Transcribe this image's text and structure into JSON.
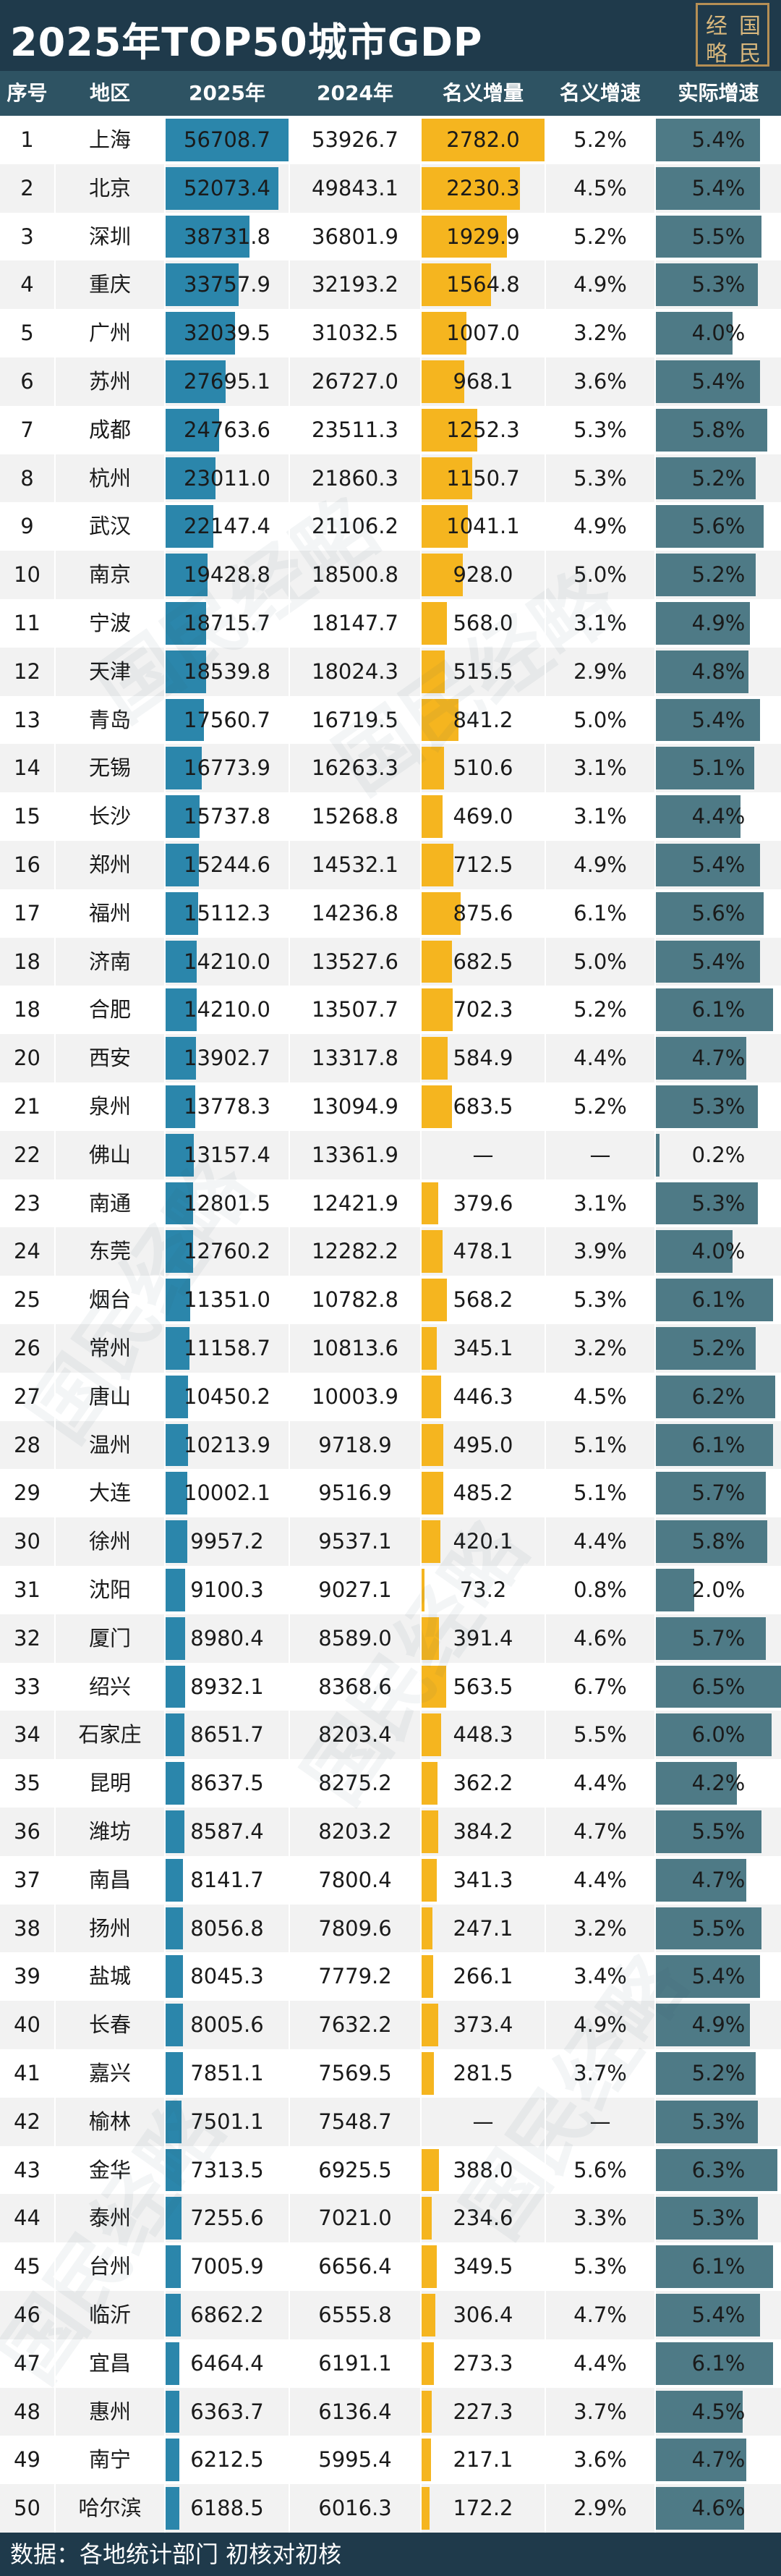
{
  "title": "2025年TOP50城市GDP",
  "logo": {
    "chars": [
      "经",
      "国",
      "略",
      "民"
    ]
  },
  "footer": {
    "text": "数据：各地统计部门 初核对初核"
  },
  "colors": {
    "title_bg": "#1f3a4b",
    "header_bg": "#2e5363",
    "bar_2025": "#2b86ab",
    "bar_increase": "#f5b51f",
    "bar_real_growth": "#4e7a86"
  },
  "chart_data": {
    "type": "table",
    "title": "2025年TOP50城市GDP",
    "columns": [
      "序号",
      "地区",
      "2025年",
      "2024年",
      "名义增量",
      "名义增速",
      "实际增速"
    ],
    "rows": [
      {
        "rank": "1",
        "city": "上海",
        "gdp2025": 56708.7,
        "gdp2024": 53926.7,
        "increase": 2782.0,
        "nominal": "5.2%",
        "real": 5.4
      },
      {
        "rank": "2",
        "city": "北京",
        "gdp2025": 52073.4,
        "gdp2024": 49843.1,
        "increase": 2230.3,
        "nominal": "4.5%",
        "real": 5.4
      },
      {
        "rank": "3",
        "city": "深圳",
        "gdp2025": 38731.8,
        "gdp2024": 36801.9,
        "increase": 1929.9,
        "nominal": "5.2%",
        "real": 5.5
      },
      {
        "rank": "4",
        "city": "重庆",
        "gdp2025": 33757.9,
        "gdp2024": 32193.2,
        "increase": 1564.8,
        "nominal": "4.9%",
        "real": 5.3
      },
      {
        "rank": "5",
        "city": "广州",
        "gdp2025": 32039.5,
        "gdp2024": 31032.5,
        "increase": 1007.0,
        "nominal": "3.2%",
        "real": 4.0
      },
      {
        "rank": "6",
        "city": "苏州",
        "gdp2025": 27695.1,
        "gdp2024": 26727.0,
        "increase": 968.1,
        "nominal": "3.6%",
        "real": 5.4
      },
      {
        "rank": "7",
        "city": "成都",
        "gdp2025": 24763.6,
        "gdp2024": 23511.3,
        "increase": 1252.3,
        "nominal": "5.3%",
        "real": 5.8
      },
      {
        "rank": "8",
        "city": "杭州",
        "gdp2025": 23011.0,
        "gdp2024": 21860.3,
        "increase": 1150.7,
        "nominal": "5.3%",
        "real": 5.2
      },
      {
        "rank": "9",
        "city": "武汉",
        "gdp2025": 22147.4,
        "gdp2024": 21106.2,
        "increase": 1041.1,
        "nominal": "4.9%",
        "real": 5.6
      },
      {
        "rank": "10",
        "city": "南京",
        "gdp2025": 19428.8,
        "gdp2024": 18500.8,
        "increase": 928.0,
        "nominal": "5.0%",
        "real": 5.2
      },
      {
        "rank": "11",
        "city": "宁波",
        "gdp2025": 18715.7,
        "gdp2024": 18147.7,
        "increase": 568.0,
        "nominal": "3.1%",
        "real": 4.9
      },
      {
        "rank": "12",
        "city": "天津",
        "gdp2025": 18539.8,
        "gdp2024": 18024.3,
        "increase": 515.5,
        "nominal": "2.9%",
        "real": 4.8
      },
      {
        "rank": "13",
        "city": "青岛",
        "gdp2025": 17560.7,
        "gdp2024": 16719.5,
        "increase": 841.2,
        "nominal": "5.0%",
        "real": 5.4
      },
      {
        "rank": "14",
        "city": "无锡",
        "gdp2025": 16773.9,
        "gdp2024": 16263.3,
        "increase": 510.6,
        "nominal": "3.1%",
        "real": 5.1
      },
      {
        "rank": "15",
        "city": "长沙",
        "gdp2025": 15737.8,
        "gdp2024": 15268.8,
        "increase": 469.0,
        "nominal": "3.1%",
        "real": 4.4
      },
      {
        "rank": "16",
        "city": "郑州",
        "gdp2025": 15244.6,
        "gdp2024": 14532.1,
        "increase": 712.5,
        "nominal": "4.9%",
        "real": 5.4
      },
      {
        "rank": "17",
        "city": "福州",
        "gdp2025": 15112.3,
        "gdp2024": 14236.8,
        "increase": 875.6,
        "nominal": "6.1%",
        "real": 5.6
      },
      {
        "rank": "18",
        "city": "济南",
        "gdp2025": 14210.0,
        "gdp2024": 13527.6,
        "increase": 682.5,
        "nominal": "5.0%",
        "real": 5.4
      },
      {
        "rank": "18",
        "city": "合肥",
        "gdp2025": 14210.0,
        "gdp2024": 13507.7,
        "increase": 702.3,
        "nominal": "5.2%",
        "real": 6.1
      },
      {
        "rank": "20",
        "city": "西安",
        "gdp2025": 13902.7,
        "gdp2024": 13317.8,
        "increase": 584.9,
        "nominal": "4.4%",
        "real": 4.7
      },
      {
        "rank": "21",
        "city": "泉州",
        "gdp2025": 13778.3,
        "gdp2024": 13094.9,
        "increase": 683.5,
        "nominal": "5.2%",
        "real": 5.3
      },
      {
        "rank": "22",
        "city": "佛山",
        "gdp2025": 13157.4,
        "gdp2024": 13361.9,
        "increase": null,
        "increase_text": "—",
        "nominal": "—",
        "real": 0.2
      },
      {
        "rank": "23",
        "city": "南通",
        "gdp2025": 12801.5,
        "gdp2024": 12421.9,
        "increase": 379.6,
        "nominal": "3.1%",
        "real": 5.3
      },
      {
        "rank": "24",
        "city": "东莞",
        "gdp2025": 12760.2,
        "gdp2024": 12282.2,
        "increase": 478.1,
        "nominal": "3.9%",
        "real": 4.0
      },
      {
        "rank": "25",
        "city": "烟台",
        "gdp2025": 11351.0,
        "gdp2024": 10782.8,
        "increase": 568.2,
        "nominal": "5.3%",
        "real": 6.1
      },
      {
        "rank": "26",
        "city": "常州",
        "gdp2025": 11158.7,
        "gdp2024": 10813.6,
        "increase": 345.1,
        "nominal": "3.2%",
        "real": 5.2
      },
      {
        "rank": "27",
        "city": "唐山",
        "gdp2025": 10450.2,
        "gdp2024": 10003.9,
        "increase": 446.3,
        "nominal": "4.5%",
        "real": 6.2
      },
      {
        "rank": "28",
        "city": "温州",
        "gdp2025": 10213.9,
        "gdp2024": 9718.9,
        "increase": 495.0,
        "nominal": "5.1%",
        "real": 6.1
      },
      {
        "rank": "29",
        "city": "大连",
        "gdp2025": 10002.1,
        "gdp2024": 9516.9,
        "increase": 485.2,
        "nominal": "5.1%",
        "real": 5.7
      },
      {
        "rank": "30",
        "city": "徐州",
        "gdp2025": 9957.2,
        "gdp2024": 9537.1,
        "increase": 420.1,
        "nominal": "4.4%",
        "real": 5.8
      },
      {
        "rank": "31",
        "city": "沈阳",
        "gdp2025": 9100.3,
        "gdp2024": 9027.1,
        "increase": 73.2,
        "nominal": "0.8%",
        "real": 2.0
      },
      {
        "rank": "32",
        "city": "厦门",
        "gdp2025": 8980.4,
        "gdp2024": 8589.0,
        "increase": 391.4,
        "nominal": "4.6%",
        "real": 5.7
      },
      {
        "rank": "33",
        "city": "绍兴",
        "gdp2025": 8932.1,
        "gdp2024": 8368.6,
        "increase": 563.5,
        "nominal": "6.7%",
        "real": 6.5
      },
      {
        "rank": "34",
        "city": "石家庄",
        "gdp2025": 8651.7,
        "gdp2024": 8203.4,
        "increase": 448.3,
        "nominal": "5.5%",
        "real": 6.0
      },
      {
        "rank": "35",
        "city": "昆明",
        "gdp2025": 8637.5,
        "gdp2024": 8275.2,
        "increase": 362.2,
        "nominal": "4.4%",
        "real": 4.2
      },
      {
        "rank": "36",
        "city": "潍坊",
        "gdp2025": 8587.4,
        "gdp2024": 8203.2,
        "increase": 384.2,
        "nominal": "4.7%",
        "real": 5.5
      },
      {
        "rank": "37",
        "city": "南昌",
        "gdp2025": 8141.7,
        "gdp2024": 7800.4,
        "increase": 341.3,
        "nominal": "4.4%",
        "real": 4.7
      },
      {
        "rank": "38",
        "city": "扬州",
        "gdp2025": 8056.8,
        "gdp2024": 7809.6,
        "increase": 247.1,
        "nominal": "3.2%",
        "real": 5.5
      },
      {
        "rank": "39",
        "city": "盐城",
        "gdp2025": 8045.3,
        "gdp2024": 7779.2,
        "increase": 266.1,
        "nominal": "3.4%",
        "real": 5.4
      },
      {
        "rank": "40",
        "city": "长春",
        "gdp2025": 8005.6,
        "gdp2024": 7632.2,
        "increase": 373.4,
        "nominal": "4.9%",
        "real": 4.9
      },
      {
        "rank": "41",
        "city": "嘉兴",
        "gdp2025": 7851.1,
        "gdp2024": 7569.5,
        "increase": 281.5,
        "nominal": "3.7%",
        "real": 5.2
      },
      {
        "rank": "42",
        "city": "榆林",
        "gdp2025": 7501.1,
        "gdp2024": 7548.7,
        "increase": null,
        "increase_text": "—",
        "nominal": "—",
        "real": 5.3
      },
      {
        "rank": "43",
        "city": "金华",
        "gdp2025": 7313.5,
        "gdp2024": 6925.5,
        "increase": 388.0,
        "nominal": "5.6%",
        "real": 6.3
      },
      {
        "rank": "44",
        "city": "泰州",
        "gdp2025": 7255.6,
        "gdp2024": 7021.0,
        "increase": 234.6,
        "nominal": "3.3%",
        "real": 5.3
      },
      {
        "rank": "45",
        "city": "台州",
        "gdp2025": 7005.9,
        "gdp2024": 6656.4,
        "increase": 349.5,
        "nominal": "5.3%",
        "real": 6.1
      },
      {
        "rank": "46",
        "city": "临沂",
        "gdp2025": 6862.2,
        "gdp2024": 6555.8,
        "increase": 306.4,
        "nominal": "4.7%",
        "real": 5.4
      },
      {
        "rank": "47",
        "city": "宜昌",
        "gdp2025": 6464.4,
        "gdp2024": 6191.1,
        "increase": 273.3,
        "nominal": "4.4%",
        "real": 6.1
      },
      {
        "rank": "48",
        "city": "惠州",
        "gdp2025": 6363.7,
        "gdp2024": 6136.4,
        "increase": 227.3,
        "nominal": "3.7%",
        "real": 4.5
      },
      {
        "rank": "49",
        "city": "南宁",
        "gdp2025": 6212.5,
        "gdp2024": 5995.4,
        "increase": 217.1,
        "nominal": "3.6%",
        "real": 4.7
      },
      {
        "rank": "50",
        "city": "哈尔滨",
        "gdp2025": 6188.5,
        "gdp2024": 6016.3,
        "increase": 172.2,
        "nominal": "2.9%",
        "real": 4.6
      }
    ],
    "bar_scales": {
      "gdp2025_max": 56708.7,
      "increase_max": 2782.0,
      "real_max": 6.5
    }
  }
}
